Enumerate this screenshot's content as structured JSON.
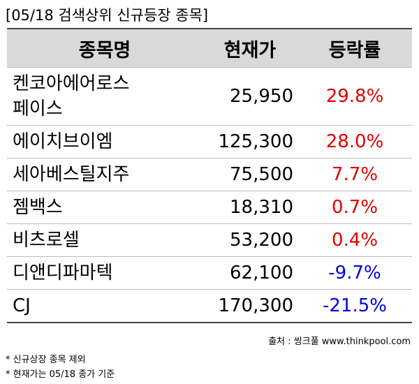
{
  "title": "[05/18 검색상위 신규등장 종목]",
  "table": {
    "header": [
      "종목명",
      "현재가",
      "등락률"
    ],
    "rows": [
      [
        "켄코아에어로스페이스",
        "25,950",
        "29.8%"
      ],
      [
        "에이치브이엠",
        "125,300",
        "28.0%"
      ],
      [
        "세아베스틸지주",
        "75,500",
        "7.7%"
      ],
      [
        "젬백스",
        "18,310",
        "0.7%"
      ],
      [
        "비츠로셀",
        "53,200",
        "0.4%"
      ],
      [
        "디앤디파마텍",
        "62,100",
        "-9.7%"
      ],
      [
        "CJ",
        "170,300",
        "-21.5%"
      ]
    ]
  },
  "source": "출처 : 씽크풀 www.thinkpool.com",
  "notes": [
    "* 신규상장 종목 제외",
    "* 현재가는 05/18 종가 기준"
  ]
}
